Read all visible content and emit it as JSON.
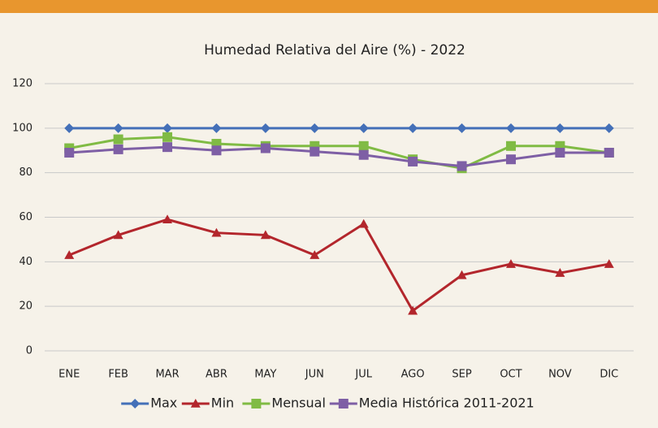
{
  "chart_data": {
    "type": "line",
    "title": "Humedad Relativa del Aire (%) - 2022",
    "categories": [
      "ENE",
      "FEB",
      "MAR",
      "ABR",
      "MAY",
      "JUN",
      "JUL",
      "AGO",
      "SEP",
      "OCT",
      "NOV",
      "DIC"
    ],
    "series": [
      {
        "name": "Max",
        "color": "#4470b8",
        "marker": "diamond",
        "values": [
          100,
          100,
          100,
          100,
          100,
          100,
          100,
          100,
          100,
          100,
          100,
          100
        ]
      },
      {
        "name": "Min",
        "color": "#b3262c",
        "marker": "triangle",
        "values": [
          43,
          52,
          59,
          53,
          52,
          43,
          57,
          18,
          34,
          39,
          35,
          39
        ]
      },
      {
        "name": "Mensual",
        "color": "#80bb44",
        "marker": "square",
        "values": [
          91,
          95,
          96,
          93,
          92,
          92,
          92,
          86,
          82,
          92,
          92,
          89
        ]
      },
      {
        "name": "Media Histórica 2011-2021",
        "color": "#7e5fa5",
        "marker": "square",
        "values": [
          89,
          90.5,
          91.5,
          90,
          91,
          89.5,
          88,
          85,
          83,
          86,
          89,
          89
        ]
      }
    ],
    "ylim": [
      0,
      120
    ],
    "yticks": [
      0,
      20,
      40,
      60,
      80,
      100,
      120
    ],
    "grid": true,
    "legend": "bottom"
  }
}
